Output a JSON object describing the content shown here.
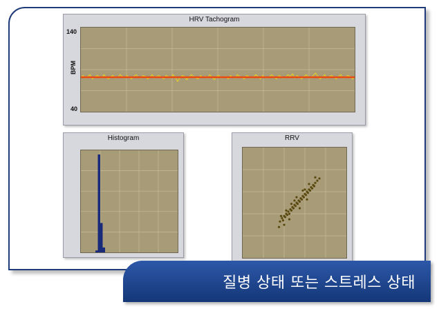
{
  "banner": {
    "text": "질병 상태 또는 스트레스 상태"
  },
  "colors": {
    "frame": "#1e3a78",
    "banner": "#1f4690",
    "plot_bg": "#a89b78",
    "trace": "#e8d41a",
    "mean_line": "#e84a12",
    "histogram": "#1a2a7a",
    "scatter": "#5a4a10"
  },
  "chart_data": [
    {
      "type": "line",
      "title": "HRV Tachogram",
      "xlabel": "",
      "ylabel": "BPM",
      "ylim": [
        40,
        140
      ],
      "yticks": [
        "140",
        "40"
      ],
      "grid": true,
      "series": [
        {
          "values": [
            81,
            83,
            80,
            82,
            84,
            79,
            81,
            83,
            82,
            80,
            84,
            81,
            79,
            82,
            83,
            80,
            81,
            84,
            82,
            80,
            83,
            81,
            79,
            82,
            84,
            81,
            80,
            83,
            82,
            79,
            81,
            84,
            80,
            82,
            83,
            81,
            79,
            83,
            82,
            80,
            84,
            81,
            76,
            80,
            83,
            82,
            78,
            81,
            84,
            82,
            80,
            79,
            83,
            81,
            82,
            80,
            84,
            81,
            78,
            82,
            83,
            80,
            81,
            82,
            79,
            83,
            81,
            80,
            84,
            82,
            81,
            79,
            83,
            82,
            80,
            81,
            84,
            82,
            79,
            83,
            81,
            80,
            82,
            84,
            81,
            79,
            83,
            82,
            80,
            81,
            84,
            82,
            85,
            80,
            83,
            81,
            79,
            82,
            84,
            81,
            80,
            83,
            86,
            82,
            79,
            81,
            84,
            80,
            82,
            83,
            81,
            79,
            82,
            84,
            80,
            81,
            83,
            82,
            79,
            81
          ]
        },
        {
          "values": [
            81,
            81
          ]
        }
      ]
    },
    {
      "type": "bar",
      "title": "Histogram",
      "grid": true,
      "values": [
        0,
        0,
        0,
        0,
        0,
        0,
        2,
        100,
        30,
        5,
        0,
        0,
        0,
        0,
        0,
        0,
        0,
        0,
        0,
        0,
        0,
        0,
        0,
        0,
        0,
        0,
        0,
        0,
        0,
        0,
        0,
        0,
        0,
        0,
        0,
        0,
        0,
        0,
        0,
        0
      ]
    },
    {
      "type": "scatter",
      "title": "RRV",
      "grid": true,
      "points": [
        [
          0.36,
          0.33
        ],
        [
          0.38,
          0.36
        ],
        [
          0.4,
          0.38
        ],
        [
          0.42,
          0.4
        ],
        [
          0.44,
          0.42
        ],
        [
          0.46,
          0.44
        ],
        [
          0.48,
          0.46
        ],
        [
          0.5,
          0.48
        ],
        [
          0.52,
          0.5
        ],
        [
          0.54,
          0.52
        ],
        [
          0.56,
          0.54
        ],
        [
          0.58,
          0.56
        ],
        [
          0.6,
          0.58
        ],
        [
          0.62,
          0.6
        ],
        [
          0.64,
          0.62
        ],
        [
          0.66,
          0.64
        ],
        [
          0.68,
          0.66
        ],
        [
          0.7,
          0.68
        ],
        [
          0.72,
          0.7
        ],
        [
          0.74,
          0.72
        ],
        [
          0.39,
          0.34
        ],
        [
          0.41,
          0.37
        ],
        [
          0.43,
          0.39
        ],
        [
          0.45,
          0.4
        ],
        [
          0.47,
          0.43
        ],
        [
          0.49,
          0.45
        ],
        [
          0.51,
          0.47
        ],
        [
          0.53,
          0.49
        ],
        [
          0.55,
          0.51
        ],
        [
          0.57,
          0.53
        ],
        [
          0.59,
          0.55
        ],
        [
          0.61,
          0.57
        ],
        [
          0.63,
          0.59
        ],
        [
          0.65,
          0.61
        ],
        [
          0.67,
          0.63
        ],
        [
          0.69,
          0.65
        ],
        [
          0.37,
          0.38
        ],
        [
          0.42,
          0.43
        ],
        [
          0.47,
          0.49
        ],
        [
          0.52,
          0.55
        ],
        [
          0.58,
          0.61
        ],
        [
          0.64,
          0.67
        ],
        [
          0.7,
          0.73
        ],
        [
          0.45,
          0.35
        ],
        [
          0.55,
          0.45
        ],
        [
          0.62,
          0.53
        ],
        [
          0.35,
          0.28
        ],
        [
          0.5,
          0.52
        ],
        [
          0.6,
          0.62
        ],
        [
          0.4,
          0.3
        ]
      ]
    }
  ]
}
